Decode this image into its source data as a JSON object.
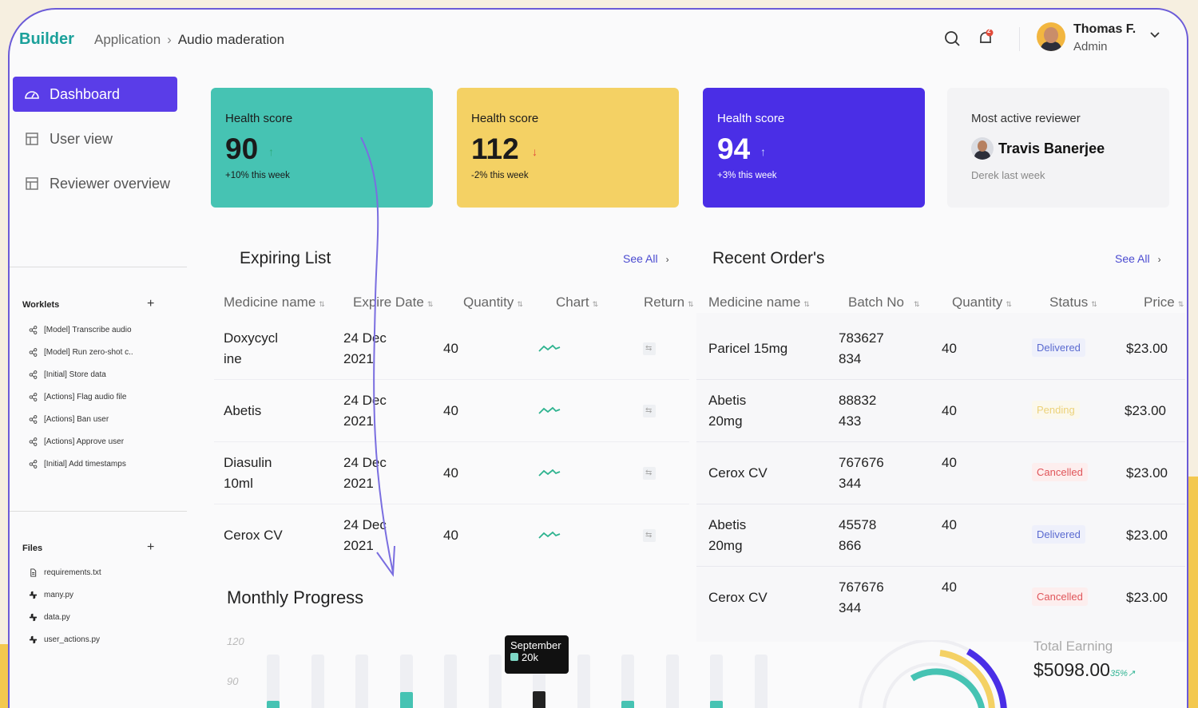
{
  "header": {
    "logo": "Builder",
    "breadcrumb": [
      "Application",
      "Audio maderation"
    ],
    "notification_count": "2",
    "user_name": "Thomas F.",
    "user_role": "Admin"
  },
  "nav": [
    {
      "label": "Dashboard",
      "icon": "dashboard-icon",
      "active": true
    },
    {
      "label": "User view",
      "icon": "layout-icon",
      "active": false
    },
    {
      "label": "Reviewer overview",
      "icon": "layout-icon",
      "active": false
    }
  ],
  "worklets": {
    "title": "Worklets",
    "items": [
      "[Model] Transcribe audio",
      "[Model] Run zero-shot c..",
      "[Initial] Store data",
      "[Actions] Flag audio file",
      "[Actions] Ban user",
      "[Actions] Approve user",
      "[Initial] Add timestamps"
    ]
  },
  "files": {
    "title": "Files",
    "items": [
      "requirements.txt",
      "many.py",
      "data.py",
      "user_actions.py"
    ]
  },
  "cards": [
    {
      "label": "Health score",
      "value": "90",
      "trend": "↑",
      "change": "+10% this week",
      "bg": "#46c3b3",
      "color": "#1b1b1b",
      "trend_color": "#2eaa7a"
    },
    {
      "label": "Health score",
      "value": "112",
      "trend": "↓",
      "change": "-2% this week",
      "bg": "#f4d164",
      "color": "#1b1b1b",
      "trend_color": "#e24b3b"
    },
    {
      "label": "Health score",
      "value": "94",
      "trend": "↑",
      "change": "+3% this week",
      "bg": "#4a2ee6",
      "color": "#ffffff",
      "trend_color": "#c5d4ff"
    }
  ],
  "reviewer_card": {
    "label": "Most active reviewer",
    "name": "Travis Banerjee",
    "sub": "Derek last week"
  },
  "expiring": {
    "title": "Expiring List",
    "see_all": "See All",
    "columns": [
      "Medicine name",
      "Expire Date",
      "Quantity",
      "Chart",
      "Return"
    ],
    "rows": [
      {
        "name": [
          "Doxycycl",
          "ine"
        ],
        "date": [
          "24 Dec",
          "2021"
        ],
        "qty": "40"
      },
      {
        "name": [
          "Abetis"
        ],
        "date": [
          "24 Dec",
          "2021"
        ],
        "qty": "40"
      },
      {
        "name": [
          "Diasulin",
          "10ml"
        ],
        "date": [
          "24 Dec",
          "2021"
        ],
        "qty": "40"
      },
      {
        "name": [
          "Cerox CV"
        ],
        "date": [
          "24 Dec",
          "2021"
        ],
        "qty": "40"
      }
    ]
  },
  "orders": {
    "title": "Recent Order's",
    "see_all": "See All",
    "columns": [
      "Medicine name",
      "Batch No",
      "Quantity",
      "Status",
      "Price"
    ],
    "rows": [
      {
        "name": [
          "Paricel 15mg"
        ],
        "batch": [
          "783627",
          "834"
        ],
        "qty": "40",
        "status": "Delivered",
        "price": "$23.00"
      },
      {
        "name": [
          "Abetis",
          "20mg"
        ],
        "batch": [
          "88832",
          "433"
        ],
        "qty": "40",
        "status": "Pending",
        "price": "$23.00"
      },
      {
        "name": [
          "Cerox CV"
        ],
        "batch": [
          "767676",
          "344"
        ],
        "qty": "40",
        "status": "Cancelled",
        "price": "$23.00"
      },
      {
        "name": [
          "Abetis",
          "20mg"
        ],
        "batch": [
          "45578",
          "866"
        ],
        "qty": "40",
        "status": "Delivered",
        "price": "$23.00"
      },
      {
        "name": [
          "Cerox CV"
        ],
        "batch": [
          "767676",
          "344"
        ],
        "qty": "40",
        "status": "Cancelled",
        "price": "$23.00"
      }
    ]
  },
  "monthly": {
    "title": "Monthly Progress",
    "y_ticks": [
      "120",
      "90"
    ],
    "tooltip_month": "September",
    "tooltip_value": "20k"
  },
  "earning": {
    "label": "Total Earning",
    "value": "$5098.00",
    "pct": "35%↗"
  },
  "chart_data": {
    "type": "bar",
    "title": "Monthly Progress",
    "ylim": [
      0,
      130
    ],
    "y_ticks": [
      120,
      90
    ],
    "bars": 12,
    "tooltip": {
      "category": "September",
      "value": "20k"
    }
  },
  "colors": {
    "accent": "#5a3de8",
    "teal": "#46c3b3",
    "yellow": "#f4d164"
  }
}
